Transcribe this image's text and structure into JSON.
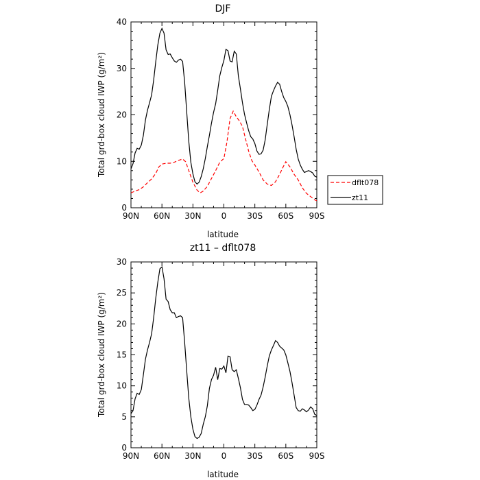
{
  "chart_data": [
    {
      "type": "line",
      "title": "DJF",
      "xlabel": "latitude",
      "ylabel": "Total grd-box cloud IWP (g/m²)",
      "x_ticks": [
        "90N",
        "60N",
        "30N",
        "0",
        "30S",
        "60S",
        "90S"
      ],
      "x_tick_values": [
        90,
        60,
        30,
        0,
        -30,
        -60,
        -90
      ],
      "xlim": [
        90,
        -90
      ],
      "ylim": [
        0,
        40
      ],
      "y_ticks": [
        0,
        10,
        20,
        30,
        40
      ],
      "legend_position": "right",
      "series": [
        {
          "name": "dflt078",
          "color": "#ff0000",
          "style": "dashed",
          "x": [
            90,
            86,
            82,
            78,
            74,
            70,
            66,
            63,
            60,
            56,
            52,
            48,
            44,
            40,
            37,
            34,
            30,
            26,
            23,
            20,
            16,
            12,
            8,
            4,
            0,
            -3,
            -6,
            -9,
            -12,
            -15,
            -18,
            -21,
            -24,
            -27,
            -30,
            -34,
            -38,
            -42,
            -46,
            -50,
            -54,
            -57,
            -60,
            -64,
            -68,
            -72,
            -76,
            -80,
            -84,
            -88,
            -90
          ],
          "y": [
            3.2,
            3.6,
            3.9,
            4.5,
            5.4,
            6.2,
            7.4,
            8.8,
            9.4,
            9.6,
            9.6,
            9.8,
            10.2,
            10.5,
            9.9,
            8.0,
            5.5,
            3.8,
            3.2,
            3.6,
            4.6,
            6.3,
            8.0,
            9.8,
            10.6,
            14.2,
            19.2,
            20.8,
            19.6,
            18.7,
            17.5,
            14.8,
            12.2,
            10.2,
            9.2,
            7.7,
            6.0,
            5.1,
            4.8,
            5.6,
            7.2,
            8.6,
            9.9,
            8.8,
            7.2,
            6.0,
            4.3,
            3.1,
            2.4,
            1.7,
            1.5
          ]
        },
        {
          "name": "zt11",
          "color": "#000000",
          "style": "solid",
          "x": [
            90,
            88,
            86,
            84,
            82,
            80,
            78,
            76,
            74,
            72,
            70,
            68,
            66,
            64,
            62,
            60,
            58,
            56,
            54,
            52,
            50,
            48,
            46,
            44,
            42,
            40,
            38,
            36,
            34,
            32,
            30,
            28,
            26,
            24,
            22,
            20,
            18,
            16,
            14,
            12,
            10,
            8,
            6,
            4,
            2,
            0,
            -2,
            -4,
            -6,
            -8,
            -10,
            -12,
            -14,
            -16,
            -18,
            -20,
            -22,
            -24,
            -26,
            -28,
            -30,
            -32,
            -34,
            -36,
            -38,
            -40,
            -42,
            -44,
            -46,
            -48,
            -50,
            -52,
            -54,
            -56,
            -58,
            -60,
            -62,
            -64,
            -66,
            -68,
            -70,
            -72,
            -74,
            -76,
            -78,
            -80,
            -82,
            -84,
            -86,
            -88,
            -90
          ],
          "y": [
            8.4,
            9.5,
            11.8,
            12.8,
            12.6,
            13.5,
            15.6,
            18.9,
            21.0,
            22.6,
            24.3,
            27.5,
            31.4,
            35.0,
            37.6,
            38.6,
            37.6,
            34.0,
            33.0,
            33.1,
            32.3,
            31.6,
            31.3,
            31.8,
            32.0,
            31.5,
            27.0,
            20.6,
            14.3,
            9.8,
            7.3,
            5.6,
            5.1,
            5.5,
            6.7,
            8.4,
            10.6,
            13.2,
            15.6,
            18.2,
            20.5,
            22.4,
            25.3,
            28.4,
            30.2,
            31.7,
            34.1,
            33.8,
            31.6,
            31.4,
            33.7,
            33.1,
            28.4,
            25.6,
            22.6,
            20.1,
            18.3,
            16.6,
            15.3,
            14.8,
            13.8,
            12.2,
            11.5,
            11.6,
            12.4,
            14.6,
            17.9,
            21.1,
            24.0,
            25.2,
            26.2,
            27.0,
            26.6,
            25.0,
            23.7,
            22.9,
            21.8,
            20.0,
            17.8,
            15.3,
            12.6,
            10.5,
            9.2,
            8.3,
            7.6,
            7.8,
            8.0,
            7.8,
            7.5,
            6.8,
            6.6
          ]
        }
      ]
    },
    {
      "type": "line",
      "title": "zt11 – dflt078",
      "xlabel": "latitude",
      "ylabel": "Total grd-box cloud IWP (g/m²)",
      "x_ticks": [
        "90N",
        "60N",
        "30N",
        "0",
        "30S",
        "60S",
        "90S"
      ],
      "x_tick_values": [
        90,
        60,
        30,
        0,
        -30,
        -60,
        -90
      ],
      "xlim": [
        90,
        -90
      ],
      "ylim": [
        0,
        30
      ],
      "y_ticks": [
        0,
        5,
        10,
        15,
        20,
        25,
        30
      ],
      "series": [
        {
          "color": "#000000",
          "style": "solid",
          "x": [
            90,
            88,
            86,
            84,
            82,
            80,
            78,
            76,
            74,
            72,
            70,
            68,
            66,
            64,
            62,
            60,
            58,
            56,
            54,
            52,
            50,
            48,
            46,
            44,
            42,
            40,
            38,
            36,
            34,
            32,
            30,
            28,
            26,
            24,
            22,
            20,
            18,
            16,
            14,
            12,
            10,
            8,
            6,
            4,
            2,
            0,
            -2,
            -4,
            -6,
            -8,
            -10,
            -12,
            -14,
            -16,
            -18,
            -20,
            -22,
            -24,
            -26,
            -28,
            -30,
            -32,
            -34,
            -36,
            -38,
            -40,
            -42,
            -44,
            -46,
            -48,
            -50,
            -52,
            -54,
            -56,
            -58,
            -60,
            -62,
            -64,
            -66,
            -68,
            -70,
            -72,
            -74,
            -76,
            -78,
            -80,
            -82,
            -84,
            -86,
            -88,
            -90
          ],
          "y": [
            5.5,
            6.0,
            7.9,
            8.8,
            8.6,
            9.4,
            11.8,
            14.3,
            15.8,
            17.0,
            18.4,
            21.0,
            24.1,
            26.7,
            28.9,
            29.2,
            27.3,
            24.0,
            23.6,
            22.3,
            21.8,
            21.8,
            21.0,
            21.2,
            21.3,
            21.0,
            17.0,
            12.4,
            8.0,
            5.0,
            3.0,
            1.8,
            1.5,
            1.7,
            2.3,
            3.8,
            5.0,
            6.8,
            9.6,
            11.0,
            11.7,
            13.0,
            11.0,
            12.8,
            12.7,
            13.2,
            12.1,
            14.8,
            14.7,
            12.6,
            12.3,
            12.6,
            11.2,
            9.7,
            7.8,
            7.0,
            7.0,
            6.9,
            6.5,
            6.0,
            6.2,
            6.9,
            7.8,
            8.5,
            9.8,
            11.4,
            13.2,
            14.8,
            15.8,
            16.5,
            17.3,
            17.0,
            16.4,
            16.1,
            15.8,
            15.0,
            13.7,
            12.3,
            10.5,
            8.5,
            6.5,
            6.0,
            5.9,
            6.3,
            6.1,
            5.8,
            6.1,
            6.6,
            6.3,
            5.4,
            5.2
          ]
        }
      ]
    }
  ]
}
